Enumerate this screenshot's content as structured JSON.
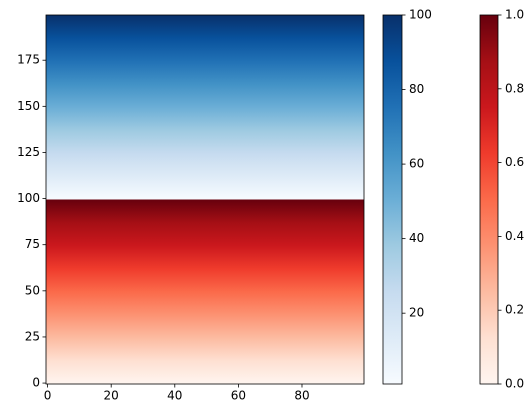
{
  "chart_data": {
    "type": "image",
    "xlim": [
      -0.5,
      99.5
    ],
    "xticks": [
      0,
      20,
      40,
      60,
      80
    ],
    "ylim": [
      -0.5,
      199.5
    ],
    "yticks": [
      0,
      25,
      50,
      75,
      100,
      125,
      150,
      175
    ],
    "regions": [
      {
        "extent": [
          -0.5,
          99.5
        ],
        "clim": [
          0,
          1
        ],
        "colors": [
          "#fff5f0",
          "#fee0d2",
          "#fcbba1",
          "#fc9272",
          "#fb6a4a",
          "#ef3b2c",
          "#cb181d",
          "#a50f15",
          "#67000d"
        ],
        "cticks": [
          {
            "value": 0,
            "label": "0.0"
          },
          {
            "value": 0.2,
            "label": "0.2"
          },
          {
            "value": 0.4,
            "label": "0.4"
          },
          {
            "value": 0.6,
            "label": "0.6"
          },
          {
            "value": 0.8,
            "label": "0.8"
          },
          {
            "value": 1,
            "label": "1.0"
          }
        ]
      },
      {
        "extent": [
          99.5,
          199.5
        ],
        "clim": [
          1,
          100
        ],
        "colors": [
          "#f7fbff",
          "#deebf7",
          "#c6dbef",
          "#9ecae1",
          "#6baed6",
          "#4292c6",
          "#2171b5",
          "#08519c",
          "#08306b"
        ],
        "cticks": [
          20,
          40,
          60,
          80,
          100
        ]
      }
    ]
  }
}
